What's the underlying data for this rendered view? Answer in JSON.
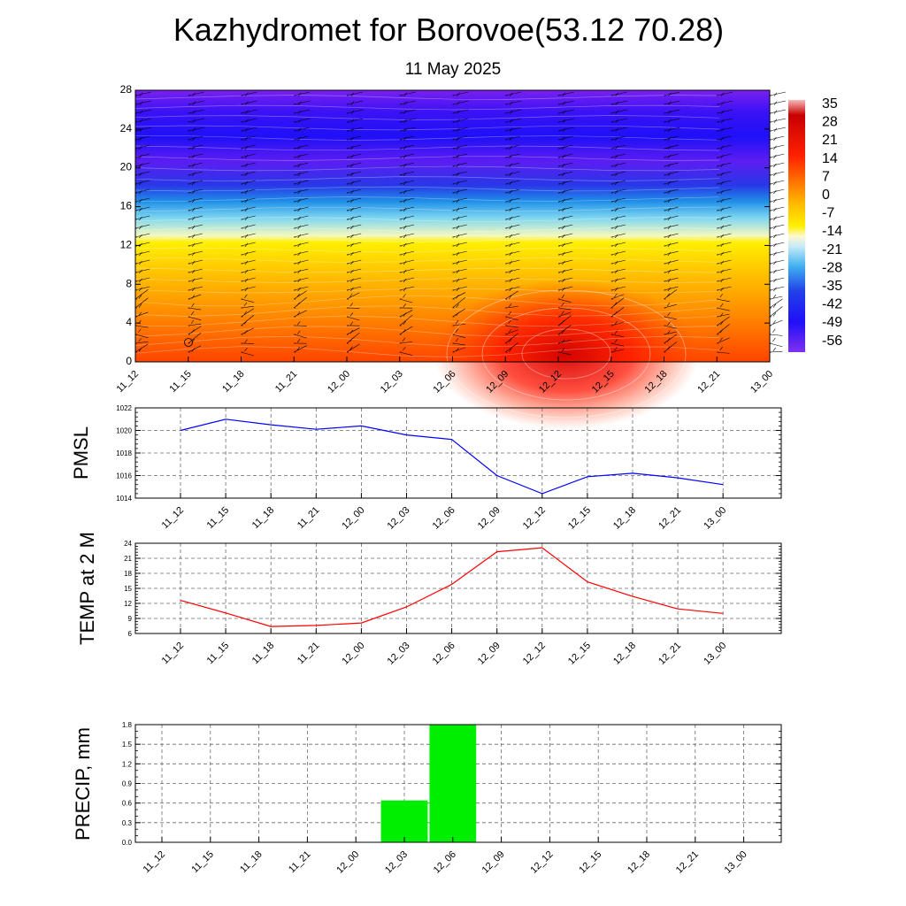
{
  "title": "Kazhydromet for Borovoe(53.12 70.28)",
  "subtitle": "11 May 2025",
  "colors": {
    "pmsl_line": "#0000ff",
    "temp_line": "#ff0000",
    "precip_bar": "#00ee00"
  },
  "chart_data": [
    {
      "type": "heatmap",
      "x_ticks": [
        "11_12",
        "11_15",
        "11_18",
        "11_21",
        "12_00",
        "12_03",
        "12_06",
        "12_09",
        "12_12",
        "12_15",
        "12_18",
        "12_21",
        "13_00"
      ],
      "y_ticks": [
        "0",
        "4",
        "8",
        "12",
        "16",
        "20",
        "24",
        "28"
      ],
      "ylim": [
        0,
        28
      ],
      "colorbar_labels": [
        "35",
        "28",
        "21",
        "14",
        "7",
        "0",
        "-7",
        "-14",
        "-21",
        "-28",
        "-35",
        "-42",
        "-49",
        "-56"
      ],
      "colorbar_range": [
        -60,
        39
      ],
      "wind_barbs": true
    },
    {
      "type": "line",
      "ylabel": "PMSL",
      "categories": [
        "11_12",
        "11_15",
        "11_18",
        "11_21",
        "12_00",
        "12_03",
        "12_06",
        "12_09",
        "12_12",
        "12_15",
        "12_18",
        "12_21",
        "13_00"
      ],
      "values": [
        1020.0,
        1021.0,
        1020.5,
        1020.1,
        1020.4,
        1019.6,
        1019.2,
        1016.0,
        1014.4,
        1015.9,
        1016.2,
        1015.8,
        1015.2
      ],
      "y_ticks": [
        "1014",
        "1016",
        "1018",
        "1020",
        "1022"
      ],
      "ylim": [
        1014,
        1022
      ],
      "grid": true
    },
    {
      "type": "line",
      "ylabel": "TEMP at 2 M",
      "categories": [
        "11_12",
        "11_15",
        "11_18",
        "11_21",
        "12_00",
        "12_03",
        "12_06",
        "12_09",
        "12_12",
        "12_15",
        "12_18",
        "12_21",
        "13_00"
      ],
      "values": [
        12.6,
        10.1,
        7.4,
        7.6,
        8.1,
        11.3,
        15.8,
        22.3,
        23.1,
        16.3,
        13.4,
        10.9,
        10.0
      ],
      "y_ticks": [
        "6",
        "9",
        "12",
        "15",
        "18",
        "21",
        "24"
      ],
      "ylim": [
        6,
        24
      ],
      "grid": true
    },
    {
      "type": "bar",
      "ylabel": "PRECIP, mm",
      "categories": [
        "11_12",
        "11_15",
        "11_18",
        "11_21",
        "12_00",
        "12_03",
        "12_06",
        "12_09",
        "12_12",
        "12_15",
        "12_18",
        "12_21",
        "13_00"
      ],
      "values": [
        0,
        0,
        0,
        0,
        0,
        0.64,
        1.8,
        0,
        0,
        0,
        0,
        0,
        0
      ],
      "y_ticks": [
        "0.0",
        "0.3",
        "0.6",
        "0.9",
        "1.2",
        "1.5",
        "1.8"
      ],
      "ylim": [
        0,
        1.8
      ],
      "grid": true
    }
  ]
}
